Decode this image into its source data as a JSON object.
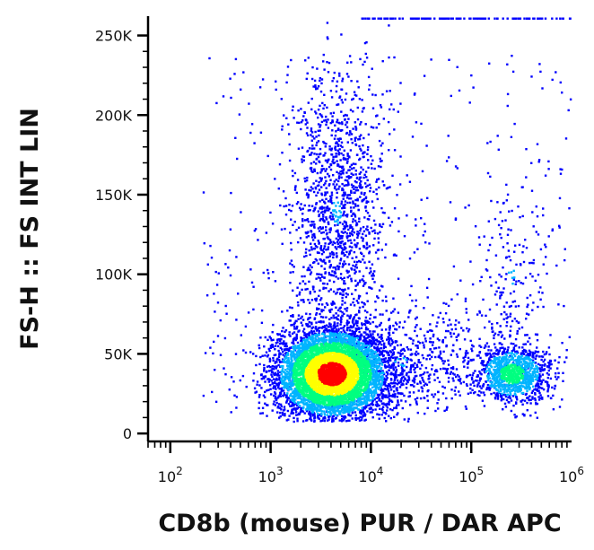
{
  "chart_data": {
    "type": "scatter",
    "subtype": "flow-cytometry density dot plot",
    "xlabel": "CD8b (mouse) PUR / DAR APC",
    "ylabel": "FS-H :: FS INT LIN",
    "x_scale": "log",
    "y_scale": "linear",
    "xlim": [
      60,
      1000000
    ],
    "ylim": [
      -5000,
      262144
    ],
    "x_ticks": [
      {
        "value": 100,
        "base": "10",
        "exp": "2"
      },
      {
        "value": 1000,
        "base": "10",
        "exp": "3"
      },
      {
        "value": 10000,
        "base": "10",
        "exp": "4"
      },
      {
        "value": 100000,
        "base": "10",
        "exp": "5"
      },
      {
        "value": 1000000,
        "base": "10",
        "exp": "6"
      }
    ],
    "y_ticks": [
      {
        "value": 0,
        "label": "0"
      },
      {
        "value": 50000,
        "label": "50K"
      },
      {
        "value": 100000,
        "label": "100K"
      },
      {
        "value": 150000,
        "label": "150K"
      },
      {
        "value": 200000,
        "label": "200K"
      },
      {
        "value": 250000,
        "label": "250K"
      }
    ],
    "grid": false,
    "color_scale": [
      "#0000ff",
      "#00b4ff",
      "#00ff80",
      "#ffff00",
      "#ff0000"
    ],
    "populations": [
      {
        "center_x": 4000,
        "center_y": 38000,
        "count": 6500,
        "density": "highest"
      },
      {
        "center_x": 4500,
        "center_y": 140000,
        "count": 1300,
        "density": "low"
      },
      {
        "center_x": 20000,
        "center_y": 45000,
        "count": 700,
        "density": "low"
      },
      {
        "center_x": 250000,
        "center_y": 38000,
        "count": 1100,
        "density": "medium"
      },
      {
        "center_x": 250000,
        "center_y": 100000,
        "count": 150,
        "density": "low"
      }
    ]
  }
}
